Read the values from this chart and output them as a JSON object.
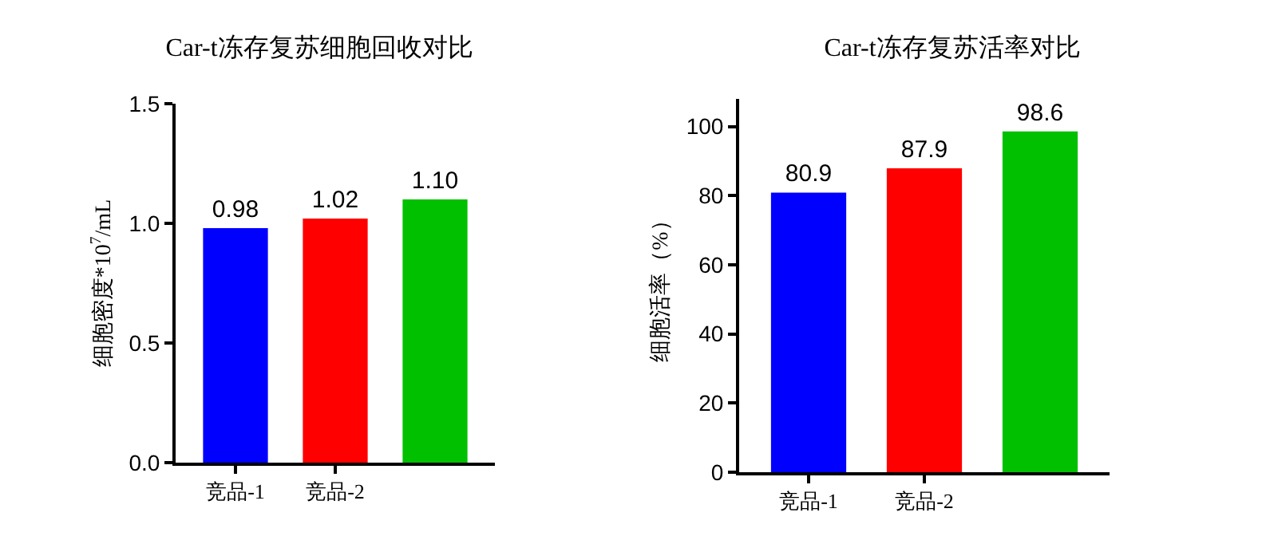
{
  "chart_data": [
    {
      "type": "bar",
      "title": "Car-t冻存复苏细胞回收对比",
      "ylabel": "细胞密度*10$^{7}$/mL",
      "categories": [
        "竞品-1",
        "竞品-2",
        null
      ],
      "values": [
        0.98,
        1.02,
        1.1
      ],
      "colors": [
        "#0000ff",
        "#ff0000",
        "#00c000"
      ],
      "value_labels": [
        "0.98",
        "1.02",
        "1.10"
      ],
      "ylim": [
        0,
        1.5
      ],
      "yticks": [
        {
          "value": 0,
          "label": "0.0"
        },
        {
          "value": 0.5,
          "label": "0.5"
        },
        {
          "value": 1,
          "label": "1.0"
        },
        {
          "value": 1.5,
          "label": "1.5"
        }
      ],
      "grid": false
    },
    {
      "type": "bar",
      "title": "Car-t冻存复苏活率对比",
      "ylabel": "细胞活率（%）",
      "categories": [
        "竞品-1",
        "竞品-2",
        null
      ],
      "values": [
        80.9,
        87.9,
        98.6
      ],
      "colors": [
        "#0000ff",
        "#ff0000",
        "#00c000"
      ],
      "data_labels": true,
      "ylim": [
        0,
        108
      ],
      "yticks": [
        0,
        20,
        40,
        60,
        80,
        100
      ],
      "grid": false
    }
  ]
}
